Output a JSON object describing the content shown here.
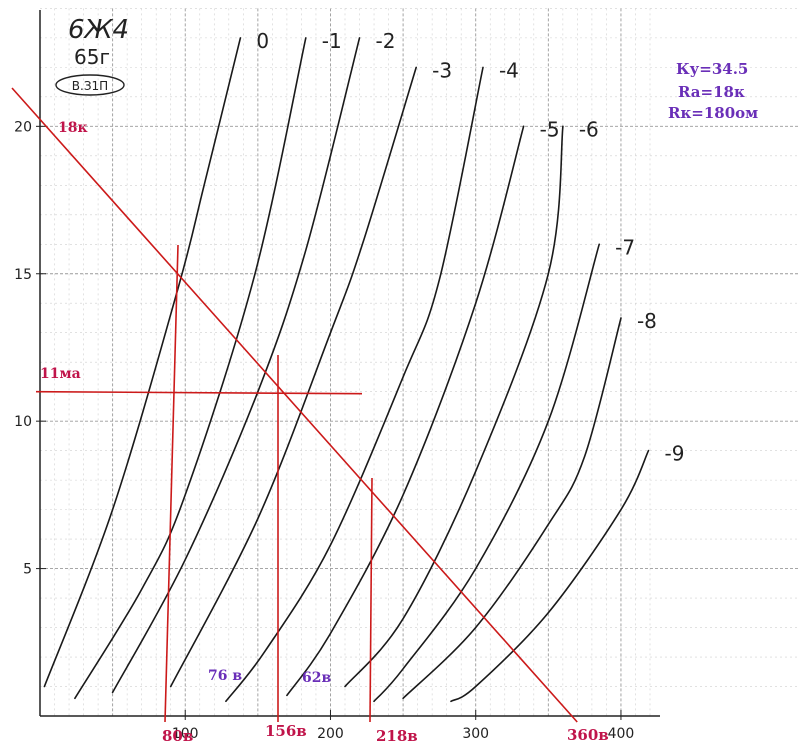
{
  "chart_data": {
    "type": "line",
    "tube": "6Ж4",
    "year": "65г",
    "stamp": "В.З1П",
    "x_ticks": [
      "100",
      "200",
      "300",
      "400"
    ],
    "y_ticks": [
      "5",
      "10",
      "15",
      "20"
    ],
    "xlim": [
      0,
      420
    ],
    "ylim": [
      0,
      24
    ],
    "grid": true,
    "series": [
      {
        "name": "0",
        "points": [
          [
            3,
            1.0
          ],
          [
            50,
            7.0
          ],
          [
            95,
            14.5
          ],
          [
            113,
            18.0
          ],
          [
            138,
            23.0
          ]
        ]
      },
      {
        "name": "-1",
        "points": [
          [
            24,
            0.6
          ],
          [
            70,
            4.3
          ],
          [
            100,
            7.5
          ],
          [
            148,
            15.0
          ],
          [
            183,
            23.0
          ]
        ]
      },
      {
        "name": "-2",
        "points": [
          [
            50,
            0.8
          ],
          [
            100,
            5.3
          ],
          [
            150,
            11.0
          ],
          [
            183,
            15.8
          ],
          [
            220,
            23.0
          ]
        ]
      },
      {
        "name": "-3",
        "points": [
          [
            90,
            1.0
          ],
          [
            150,
            6.7
          ],
          [
            200,
            13.0
          ],
          [
            222,
            16.0
          ],
          [
            259,
            22.0
          ]
        ]
      },
      {
        "name": "-4",
        "points": [
          [
            128,
            0.5
          ],
          [
            155,
            2.2
          ],
          [
            200,
            5.8
          ],
          [
            250,
            11.5
          ],
          [
            275,
            14.8
          ],
          [
            305,
            22.0
          ]
        ]
      },
      {
        "name": "-5",
        "points": [
          [
            170,
            0.7
          ],
          [
            200,
            2.8
          ],
          [
            250,
            7.5
          ],
          [
            300,
            14.0
          ],
          [
            333,
            20.0
          ]
        ]
      },
      {
        "name": "-6",
        "points": [
          [
            210,
            1.0
          ],
          [
            250,
            3.3
          ],
          [
            300,
            8.3
          ],
          [
            350,
            15.0
          ],
          [
            360,
            20.0
          ]
        ]
      },
      {
        "name": "-7",
        "points": [
          [
            230,
            0.5
          ],
          [
            250,
            1.6
          ],
          [
            300,
            5.0
          ],
          [
            350,
            10.0
          ],
          [
            385,
            16.0
          ]
        ]
      },
      {
        "name": "-8",
        "points": [
          [
            250,
            0.6
          ],
          [
            300,
            3.0
          ],
          [
            350,
            6.5
          ],
          [
            375,
            8.8
          ],
          [
            400,
            13.5
          ]
        ]
      },
      {
        "name": "-9",
        "points": [
          [
            283,
            0.5
          ],
          [
            300,
            1.0
          ],
          [
            350,
            3.5
          ],
          [
            400,
            7.0
          ],
          [
            419,
            9.0
          ]
        ]
      }
    ],
    "load_line": {
      "from": [
        0,
        20.5
      ],
      "to": [
        363,
        0
      ]
    },
    "quiescent_point": [
      156,
      11
    ],
    "annotations": {
      "ku": "Ку=34.5",
      "ra": "Ra=18к",
      "rk": "Rк=180ом",
      "r18k": "18к",
      "ma11": "11ма",
      "v80": "80в",
      "v156": "156в",
      "v218": "218в",
      "v360": "360в",
      "d76": "76 в",
      "d62": "62в"
    },
    "annotation_color_red": "#c0144a",
    "annotation_color_purple": "#6a2fb8",
    "line_color": "#cc1a1a"
  }
}
